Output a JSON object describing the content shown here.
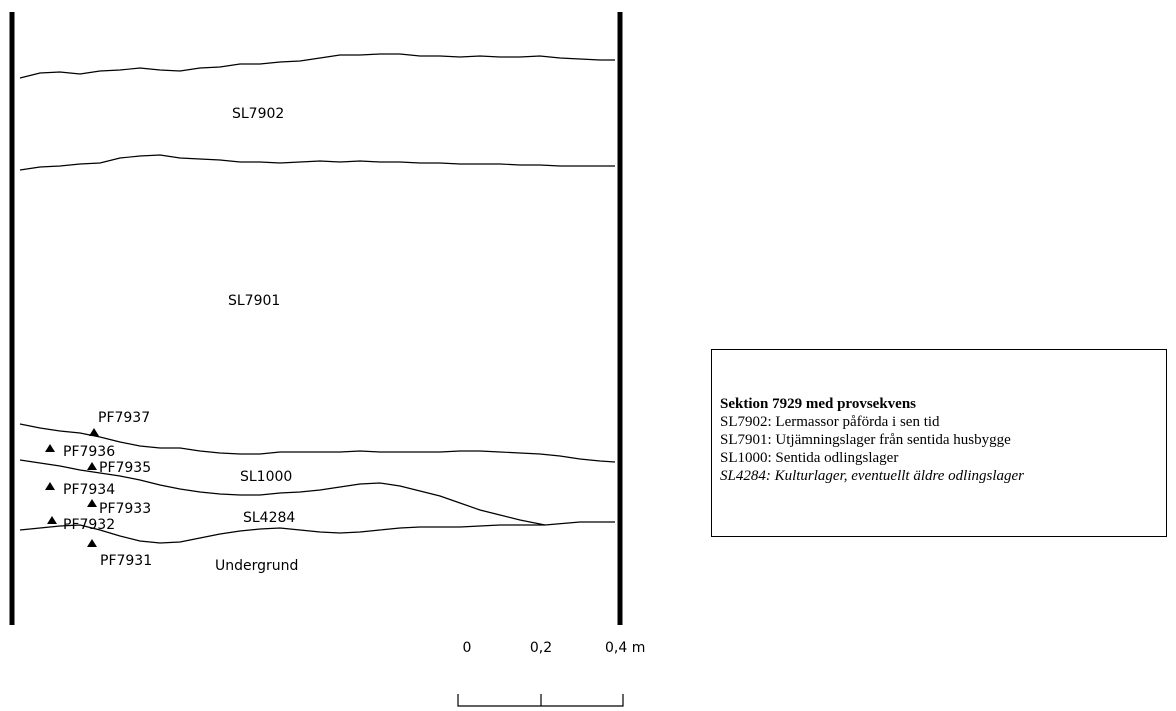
{
  "section": {
    "layers": [
      {
        "label": "SL7902"
      },
      {
        "label": "SL7901"
      },
      {
        "label": "SL1000"
      },
      {
        "label": "SL4284"
      },
      {
        "label": "Undergrund"
      }
    ],
    "samples": [
      {
        "label": "PF7937"
      },
      {
        "label": "PF7936"
      },
      {
        "label": "PF7935"
      },
      {
        "label": "PF7934"
      },
      {
        "label": "PF7933"
      },
      {
        "label": "PF7932"
      },
      {
        "label": "PF7931"
      }
    ],
    "scale": {
      "labels": [
        "0",
        "0,2",
        "0,4 m"
      ]
    }
  },
  "legend": {
    "title": "Sektion 7929 med provsekvens",
    "items": [
      "SL7902: Lermassor påförda i sen tid",
      "SL7901: Utjämningslager från sentida husbygge",
      "SL1000: Sentida odlingslager",
      "SL4284: Kulturlager, eventuellt äldre odlingslager"
    ]
  }
}
